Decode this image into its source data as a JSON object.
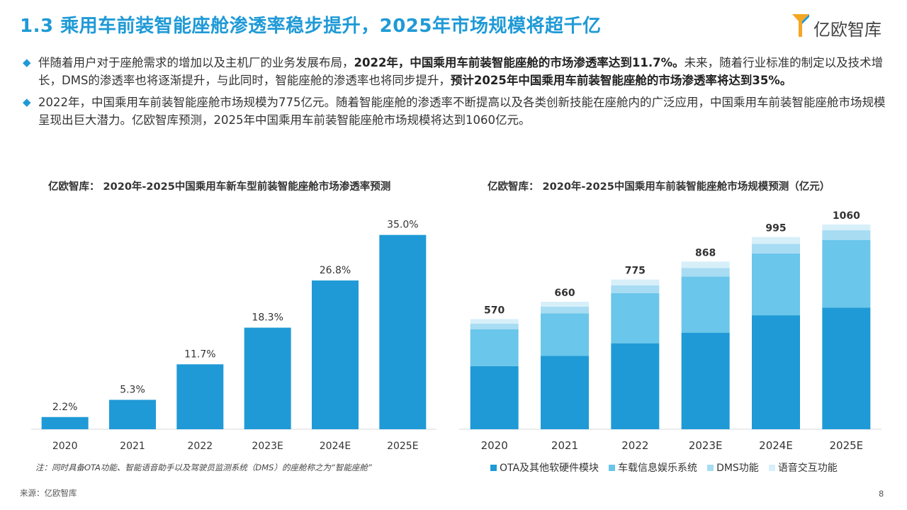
{
  "page": {
    "title": "1.3 乘用车前装智能座舱渗透率稳步提升，2025年市场规模将超千亿",
    "logo_text": "亿欧智库",
    "accent_color": "#1f9ad6",
    "bullet_icon": "diamond-icon",
    "bullets": [
      {
        "p1": "伴随着用户对于座舱需求的增加以及主机厂的业务发展布局，",
        "b1": "2022年，中国乘用车前装智能座舱的市场渗透率达到11.7%。",
        "p2": "未来，随着行业标准的制定以及技术增长，DMS的渗透率也将逐渐提升，与此同时，智能座舱的渗透率也将同步提升，",
        "b2": "预计2025年中国乘用车前装智能座舱的市场渗透率将达到35%。"
      },
      {
        "p1": "2022年，中国乘用车前装智能座舱市场规模为775亿元。随着智能座舱的渗透率不断提高以及各类创新技能在座舱内的广泛应用，中国乘用车前装智能座舱市场规模呈现出巨大潜力。亿欧智库预测，2025年中国乘用车前装智能座舱市场规模将达到1060亿元。"
      }
    ],
    "note": "注：同时具备OTA功能、智能语音助手以及驾驶员监测系统（DMS）的座舱称之为“智能座舱”",
    "source": "来源：亿欧智库",
    "page_number": "8"
  },
  "chart_data": [
    {
      "type": "bar",
      "title": "亿欧智库： 2020年-2025中国乘用车新车型前装智能座舱市场渗透率预测",
      "categories": [
        "2020",
        "2021",
        "2022",
        "2023E",
        "2024E",
        "2025E"
      ],
      "values": [
        2.2,
        5.3,
        11.7,
        18.3,
        26.8,
        35.0
      ],
      "value_labels": [
        "2.2%",
        "5.3%",
        "11.7%",
        "18.3%",
        "26.8%",
        "35.0%"
      ],
      "ylim": [
        0,
        37
      ],
      "color": "#1f9ad6",
      "grid": false
    },
    {
      "type": "bar",
      "stacked": true,
      "title": "亿欧智库： 2020年-2025中国乘用车前装智能座舱市场规模预测（亿元）",
      "categories": [
        "2020",
        "2021",
        "2022",
        "2023E",
        "2024E",
        "2025E"
      ],
      "totals": [
        570,
        660,
        775,
        868,
        995,
        1060
      ],
      "ylim": [
        0,
        1100
      ],
      "legend_position": "bottom",
      "grid": false,
      "series": [
        {
          "name": "OTA及其他软硬件模块",
          "color": "#1f9ad6",
          "values": [
            327,
            380,
            445,
            500,
            590,
            630
          ]
        },
        {
          "name": "车载信息娱乐系统",
          "color": "#6ac6ea",
          "values": [
            190,
            220,
            260,
            290,
            320,
            350
          ]
        },
        {
          "name": "DMS功能",
          "color": "#a7dcf3",
          "values": [
            30,
            35,
            40,
            45,
            50,
            50
          ]
        },
        {
          "name": "语音交互功能",
          "color": "#d7eff9",
          "values": [
            23,
            25,
            30,
            33,
            35,
            30
          ]
        }
      ]
    }
  ]
}
